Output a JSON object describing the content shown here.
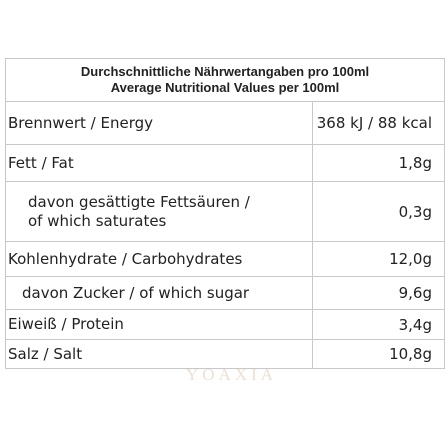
{
  "header": {
    "lines": [
      "Durchschnittliche Nährwertangaben pro 100ml",
      "Average Nutritional Values per 100ml"
    ]
  },
  "table": {
    "rows": [
      {
        "label": [
          "Brennwert / Energy"
        ],
        "value": "368 kJ / 88 kcal"
      },
      {
        "label": [
          "Fett / Fat"
        ],
        "value": "1,8g"
      },
      {
        "label": [
          "davon gesättigte Fettsäuren /",
          "of which saturates"
        ],
        "value": "0,3g"
      },
      {
        "label": [
          "Kohlenhydrate / Carbohydrates"
        ],
        "value": "12,0g"
      },
      {
        "label": [
          "davon Zucker / of which sugar"
        ],
        "value": "9,6g"
      },
      {
        "label": [
          "Eiweiß / Protein"
        ],
        "value": "3,4g"
      },
      {
        "label": [
          "Salz / Salt"
        ],
        "value": "10,8g"
      }
    ]
  },
  "watermark": "YOAXIA"
}
